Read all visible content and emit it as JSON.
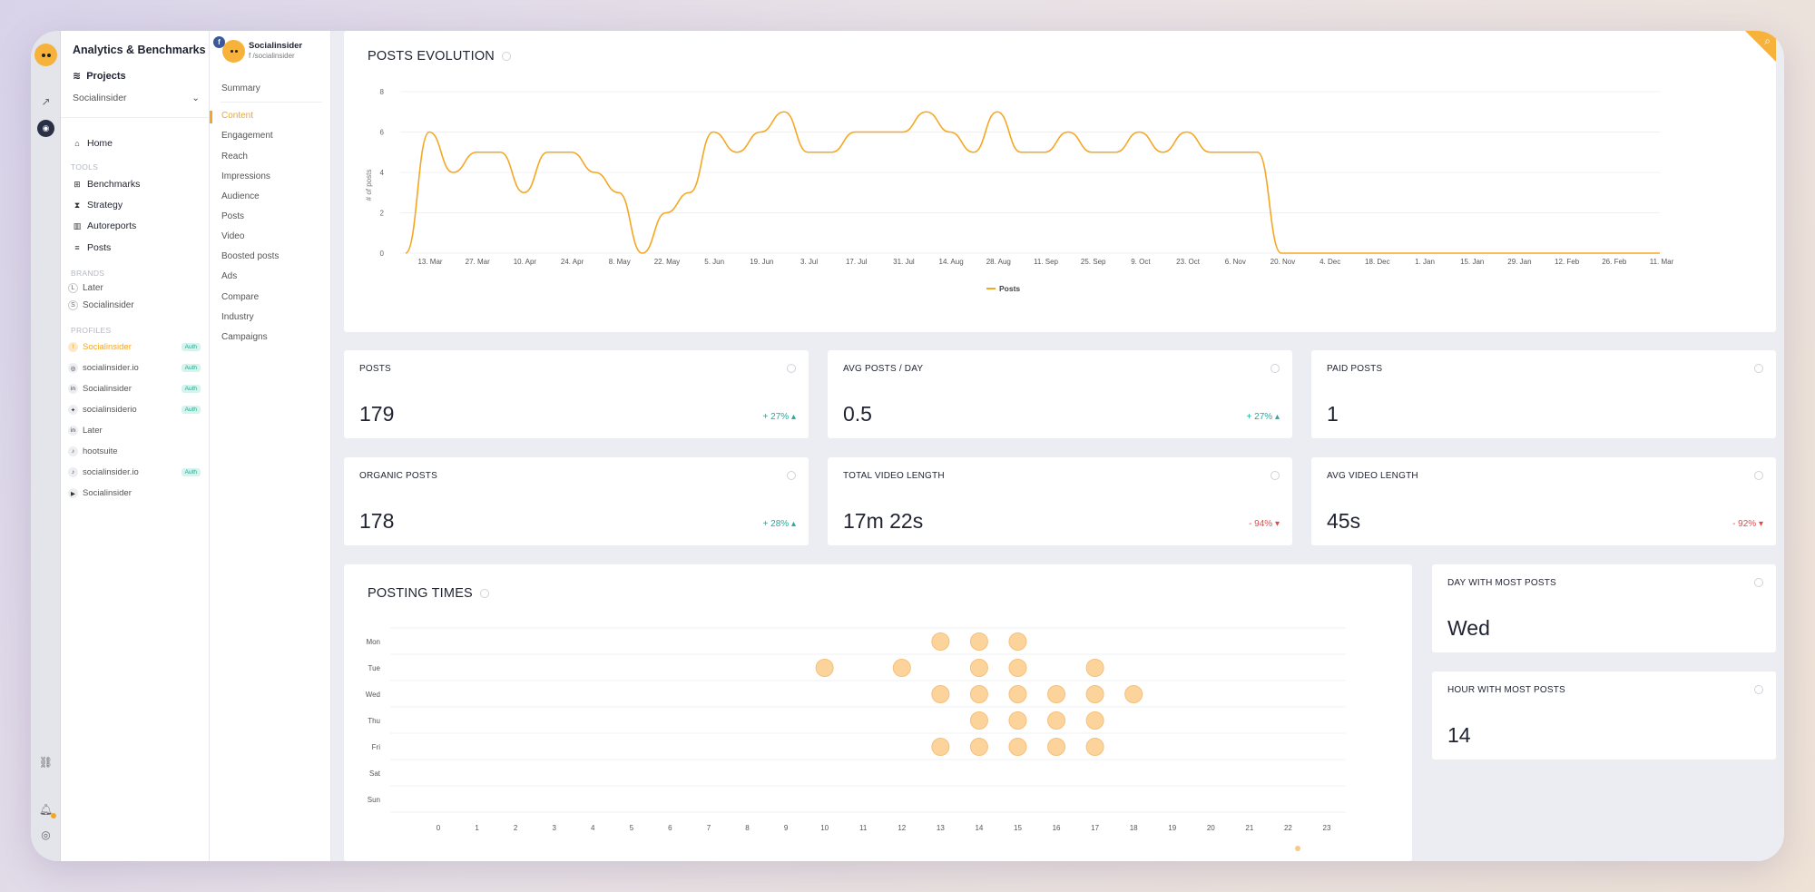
{
  "sidebar": {
    "title": "Analytics & Benchmarks",
    "projects_label": "Projects",
    "project_select": "Socialinsider",
    "home": "Home",
    "tools_heading": "TOOLS",
    "tools": [
      "Benchmarks",
      "Strategy",
      "Autoreports",
      "Posts"
    ],
    "brands_heading": "BRANDS",
    "brands": [
      {
        "initial": "L",
        "name": "Later"
      },
      {
        "initial": "S",
        "name": "Socialinsider"
      }
    ],
    "profiles_heading": "PROFILES",
    "profiles": [
      {
        "network": "f",
        "name": "Socialinsider",
        "auth": "Auth",
        "active": true
      },
      {
        "network": "ig",
        "name": "socialinsider.io",
        "auth": "Auth"
      },
      {
        "network": "in",
        "name": "Socialinsider",
        "auth": "Auth"
      },
      {
        "network": "tw",
        "name": "socialinsiderio",
        "auth": "Auth"
      },
      {
        "network": "in",
        "name": "Later",
        "auth": ""
      },
      {
        "network": "tt",
        "name": "hootsuite",
        "auth": ""
      },
      {
        "network": "tt",
        "name": "socialinsider.io",
        "auth": "Auth"
      },
      {
        "network": "yt",
        "name": "Socialinsider",
        "auth": ""
      }
    ]
  },
  "subnav": {
    "profile_name": "Socialinsider",
    "profile_handle": "f /socialinsider",
    "items": [
      "Summary",
      "Content",
      "Engagement",
      "Reach",
      "Impressions",
      "Audience",
      "Posts",
      "Video",
      "Boosted posts",
      "Ads",
      "Compare",
      "Industry",
      "Campaigns"
    ],
    "active": "Content"
  },
  "posts_evolution": {
    "title": "POSTS EVOLUTION",
    "legend": "Posts"
  },
  "stats": [
    {
      "label": "POSTS",
      "value": "179",
      "change": "+ 27%",
      "direction": "up"
    },
    {
      "label": "AVG POSTS / DAY",
      "value": "0.5",
      "change": "+ 27%",
      "direction": "up"
    },
    {
      "label": "PAID POSTS",
      "value": "1",
      "change": "",
      "direction": ""
    },
    {
      "label": "ORGANIC POSTS",
      "value": "178",
      "change": "+ 28%",
      "direction": "up"
    },
    {
      "label": "TOTAL VIDEO LENGTH",
      "value": "17m 22s",
      "change": "- 94%",
      "direction": "down"
    },
    {
      "label": "AVG VIDEO LENGTH",
      "value": "45s",
      "change": "- 92%",
      "direction": "down"
    }
  ],
  "posting_times": {
    "title": "POSTING TIMES"
  },
  "side_stats": [
    {
      "label": "DAY WITH MOST POSTS",
      "value": "Wed"
    },
    {
      "label": "HOUR WITH MOST POSTS",
      "value": "14"
    }
  ],
  "colors": {
    "accent": "#f5a623",
    "up": "#26a89b",
    "down": "#e04b4b"
  },
  "chart_data": [
    {
      "type": "line",
      "ylabel": "# of posts",
      "ylim": [
        0,
        8
      ],
      "y_ticks": [
        0,
        2,
        4,
        6,
        8
      ],
      "x_ticks": [
        "13. Mar",
        "27. Mar",
        "10. Apr",
        "24. Apr",
        "8. May",
        "22. May",
        "5. Jun",
        "19. Jun",
        "3. Jul",
        "17. Jul",
        "31. Jul",
        "14. Aug",
        "28. Aug",
        "11. Sep",
        "25. Sep",
        "9. Oct",
        "23. Oct",
        "6. Nov",
        "20. Nov",
        "4. Dec",
        "18. Dec",
        "1. Jan",
        "15. Jan",
        "29. Jan",
        "12. Feb",
        "26. Feb",
        "11. Mar"
      ],
      "series": [
        {
          "name": "Posts",
          "values": [
            0,
            6,
            4,
            5,
            5,
            3,
            5,
            5,
            4,
            3,
            0,
            2,
            3,
            6,
            5,
            6,
            7,
            5,
            5,
            6,
            6,
            6,
            7,
            6,
            5,
            7,
            5,
            5,
            6,
            5,
            5,
            6,
            5,
            6,
            5,
            5,
            5,
            0,
            0,
            0,
            0,
            0,
            0,
            0,
            0,
            0,
            0,
            0,
            0,
            0,
            0,
            0,
            0,
            0
          ]
        }
      ]
    },
    {
      "type": "scatter",
      "x_ticks": [
        "0",
        "1",
        "2",
        "3",
        "4",
        "5",
        "6",
        "7",
        "8",
        "9",
        "10",
        "11",
        "12",
        "13",
        "14",
        "15",
        "16",
        "17",
        "18",
        "19",
        "20",
        "21",
        "22",
        "23"
      ],
      "y_categories": [
        "Mon",
        "Tue",
        "Wed",
        "Thu",
        "Fri",
        "Sat",
        "Sun"
      ],
      "points": [
        {
          "day": "Mon",
          "hour": 13
        },
        {
          "day": "Mon",
          "hour": 14
        },
        {
          "day": "Mon",
          "hour": 15
        },
        {
          "day": "Tue",
          "hour": 10
        },
        {
          "day": "Tue",
          "hour": 12
        },
        {
          "day": "Tue",
          "hour": 14
        },
        {
          "day": "Tue",
          "hour": 15
        },
        {
          "day": "Tue",
          "hour": 17
        },
        {
          "day": "Wed",
          "hour": 13
        },
        {
          "day": "Wed",
          "hour": 14
        },
        {
          "day": "Wed",
          "hour": 15
        },
        {
          "day": "Wed",
          "hour": 16
        },
        {
          "day": "Wed",
          "hour": 17
        },
        {
          "day": "Wed",
          "hour": 18
        },
        {
          "day": "Thu",
          "hour": 14
        },
        {
          "day": "Thu",
          "hour": 15
        },
        {
          "day": "Thu",
          "hour": 16
        },
        {
          "day": "Thu",
          "hour": 17
        },
        {
          "day": "Fri",
          "hour": 13
        },
        {
          "day": "Fri",
          "hour": 14
        },
        {
          "day": "Fri",
          "hour": 15
        },
        {
          "day": "Fri",
          "hour": 16
        },
        {
          "day": "Fri",
          "hour": 17
        }
      ]
    }
  ]
}
